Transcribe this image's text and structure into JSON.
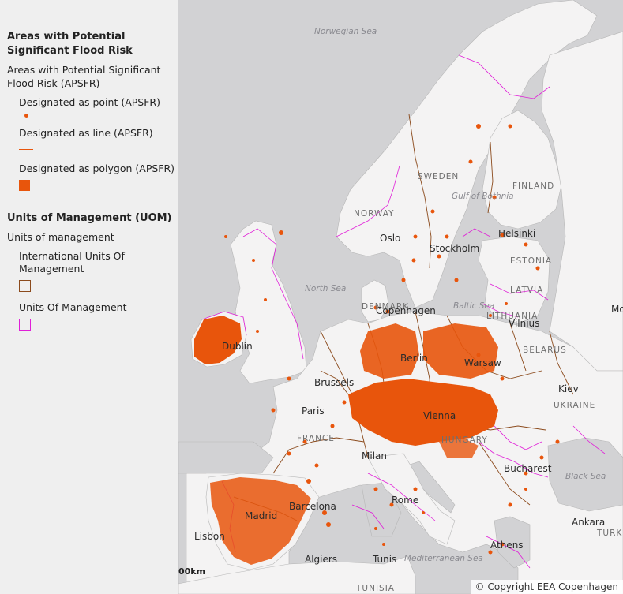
{
  "legend": {
    "apsfr": {
      "title": "Areas with Potential Significant Flood Risk",
      "subtitle": "Areas with Potential Significant Flood Risk (APSFR)",
      "items": [
        {
          "label": "Designated as point (APSFR)",
          "symbol": "point-icon"
        },
        {
          "label": "Designated as line (APSFR)",
          "symbol": "line-icon"
        },
        {
          "label": "Designated as polygon (APSFR)",
          "symbol": "polygon-icon"
        }
      ]
    },
    "uom": {
      "title": "Units of Management (UOM)",
      "subtitle": "Units of management",
      "items": [
        {
          "label": "International Units Of Management",
          "symbol": "intl-uom-icon"
        },
        {
          "label": "Units Of Management",
          "symbol": "uom-icon"
        }
      ]
    }
  },
  "colors": {
    "apsfr": "#e8550c",
    "intl_uom": "#8b4a1c",
    "uom": "#e020d8",
    "land": "#f4f3f3",
    "sea": "#d2d2d4"
  },
  "map": {
    "countries": [
      "SWEDEN",
      "FINLAND",
      "NORWAY",
      "ESTONIA",
      "LATVIA",
      "LITHUANIA",
      "DENMARK",
      "BELARUS",
      "UKRAINE",
      "FRANCE",
      "HUNGARY",
      "TURKEY",
      "TUNISIA"
    ],
    "seas": [
      "Norwegian Sea",
      "North Sea",
      "Baltic Sea",
      "Gulf of Bothnia",
      "Mediterranean Sea",
      "Black Sea"
    ],
    "cities": [
      "Oslo",
      "Stockholm",
      "Helsinki",
      "Copenhagen",
      "Vilnius",
      "Dublin",
      "Berlin",
      "Warsaw",
      "Kiev",
      "Brussels",
      "Paris",
      "Vienna",
      "Milan",
      "Bucharest",
      "Rome",
      "Barcelona",
      "Madrid",
      "Lisbon",
      "Ankara",
      "Athens",
      "Algiers",
      "Tunis",
      "Mo"
    ],
    "scale_label": "00km",
    "attribution": "© Copyright EEA Copenhagen"
  }
}
